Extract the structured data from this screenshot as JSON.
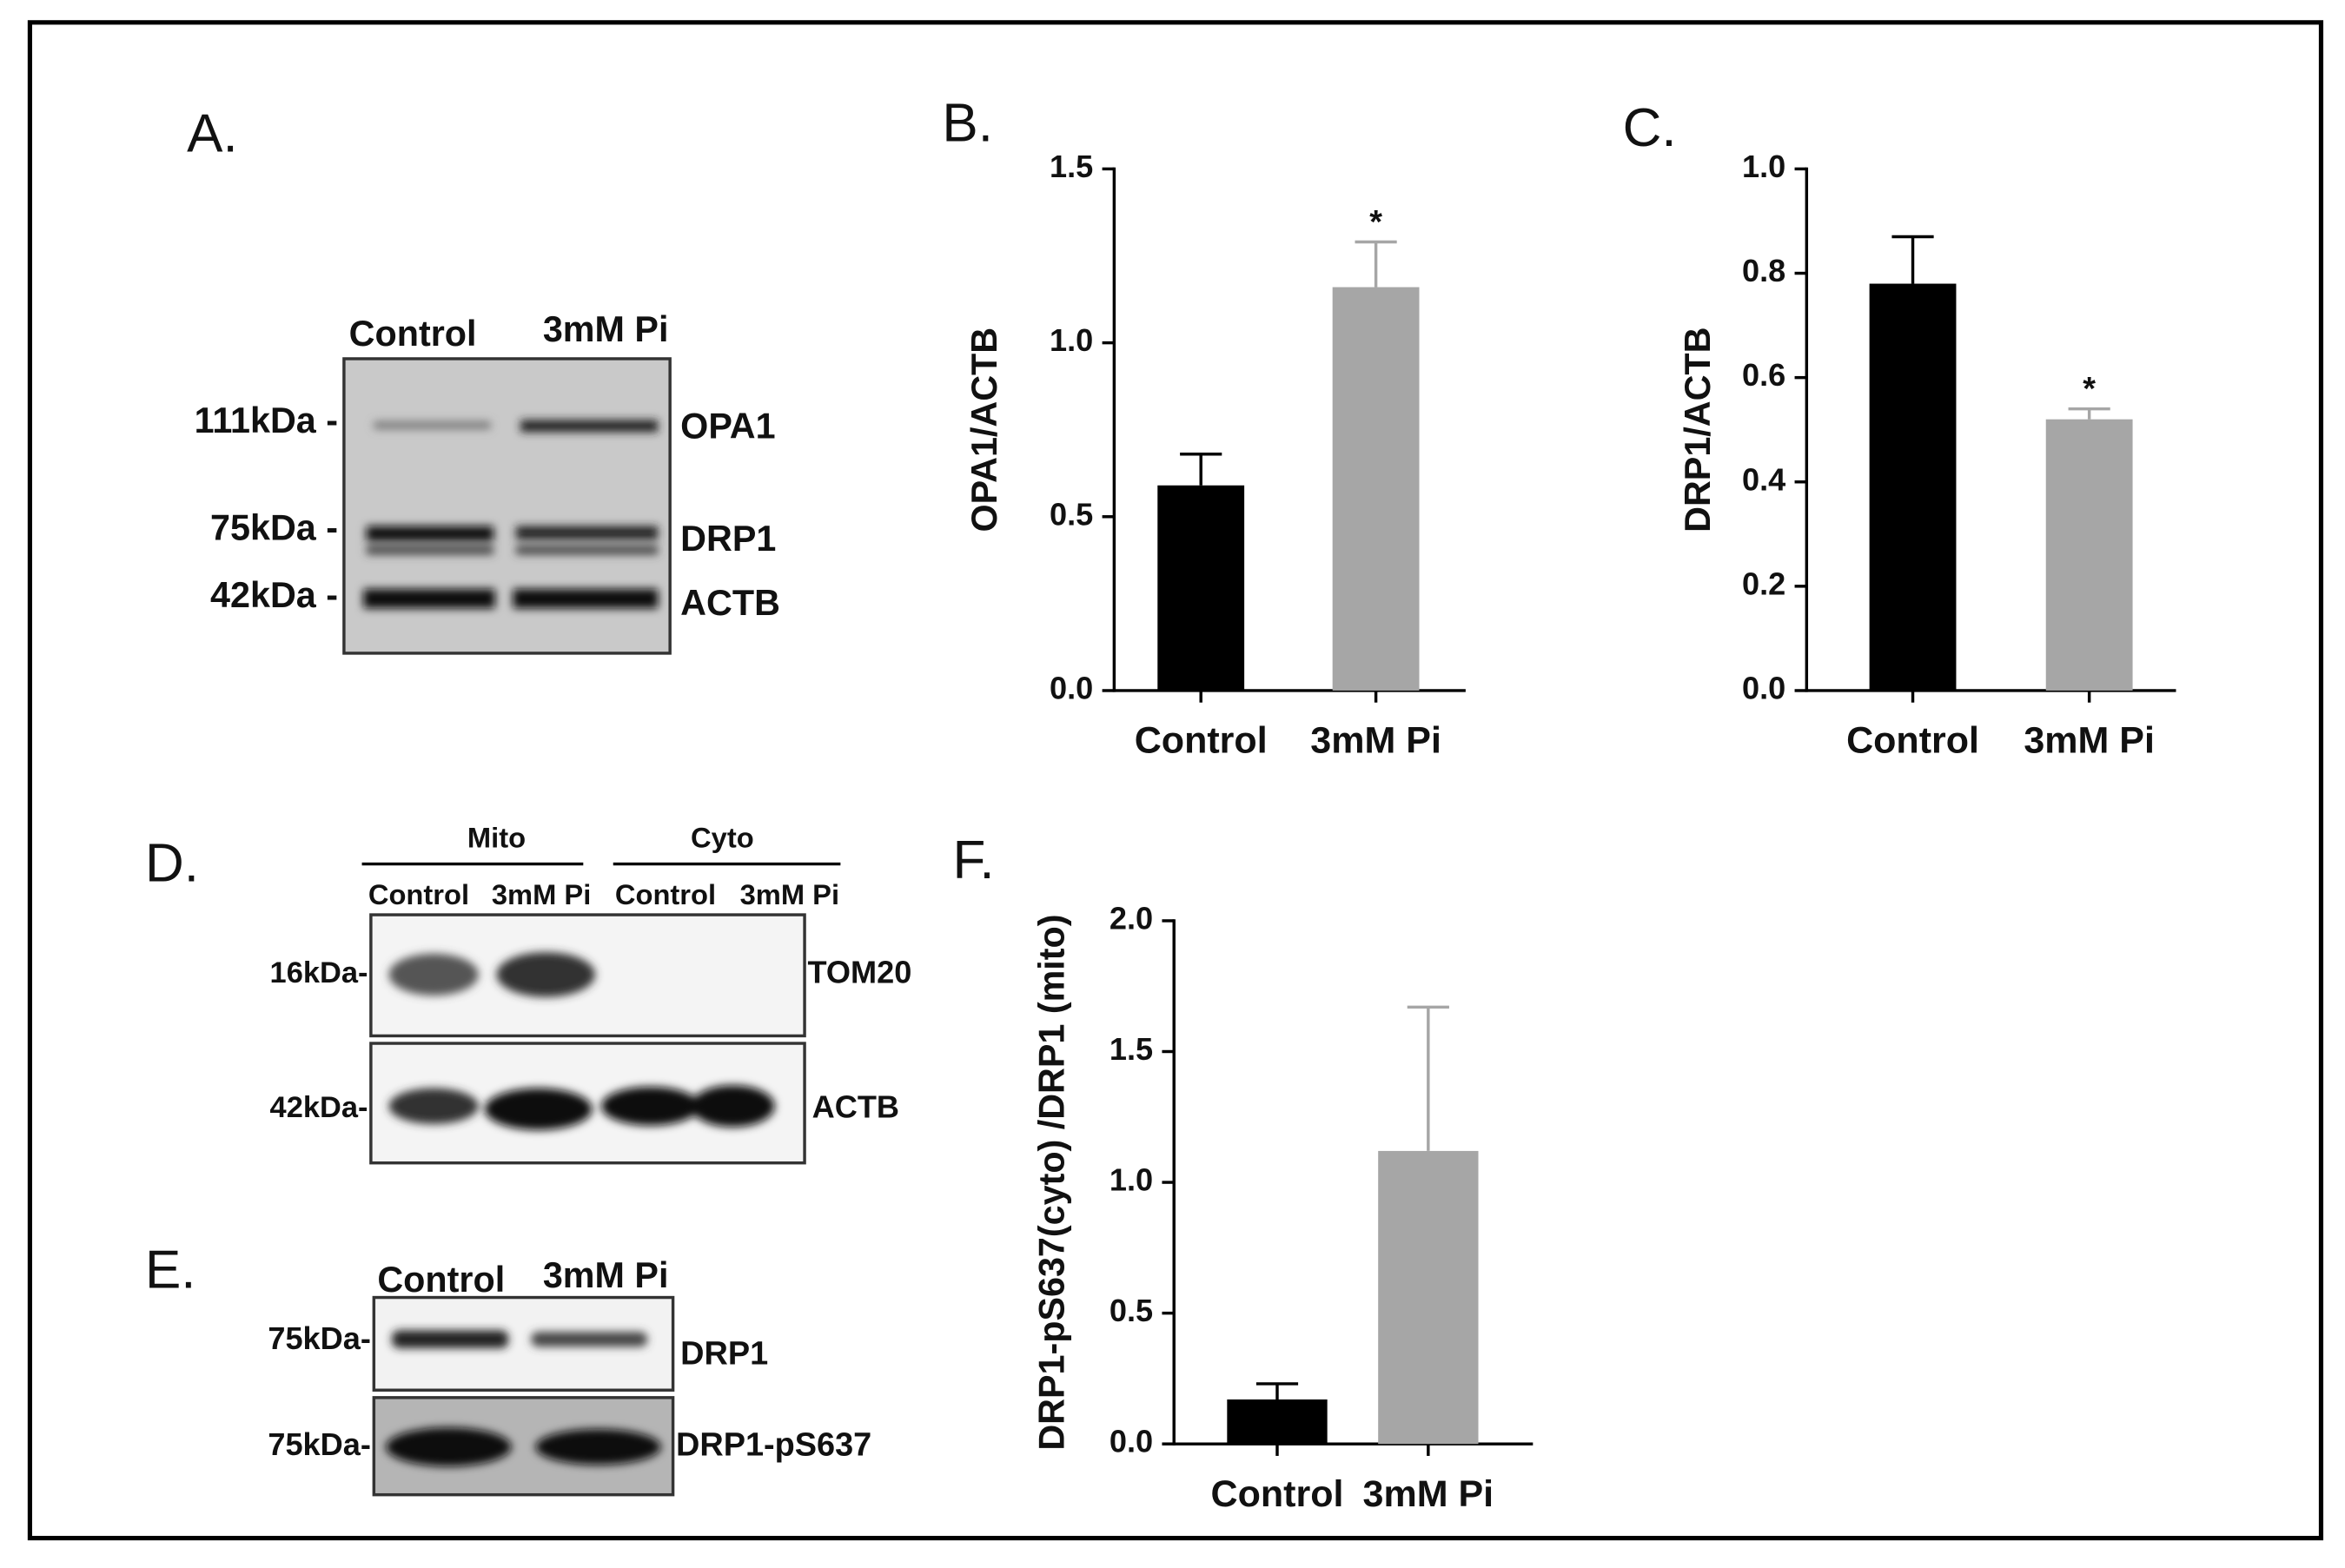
{
  "chart_data": [
    {
      "type": "bar",
      "panel_label": "B.",
      "y_label": "OPA1/ACTB",
      "categories": [
        "Control",
        "3mM Pi"
      ],
      "values": [
        0.59,
        1.16
      ],
      "errors": [
        0.09,
        0.13
      ],
      "colors": [
        "#000000",
        "#a6a6a6"
      ],
      "significance": [
        null,
        "*"
      ],
      "ylim": [
        0,
        1.5
      ],
      "yticks": [
        {
          "value": 0,
          "label": "0.0"
        },
        0.5,
        {
          "value": 1,
          "label": "1.0"
        },
        1.5
      ]
    },
    {
      "type": "bar",
      "panel_label": "C.",
      "y_label": "DRP1/ACTB",
      "categories": [
        "Control",
        "3mM Pi"
      ],
      "values": [
        0.78,
        0.52
      ],
      "errors": [
        0.09,
        0.02
      ],
      "colors": [
        "#000000",
        "#a6a6a6"
      ],
      "significance": [
        null,
        "*"
      ],
      "ylim": [
        0,
        1
      ],
      "yticks": [
        {
          "value": 0,
          "label": "0.0"
        },
        0.2,
        0.4,
        0.6,
        0.8,
        {
          "value": 1,
          "label": "1.0"
        }
      ]
    },
    {
      "type": "bar",
      "panel_label": "F.",
      "y_label": "DRP1-pS637(cyto) /DRP1 (mito)",
      "categories": [
        "Control",
        "3mM Pi"
      ],
      "values": [
        0.17,
        1.12
      ],
      "errors": [
        0.06,
        0.55
      ],
      "colors": [
        "#000000",
        "#a6a6a6"
      ],
      "significance": [
        null,
        null
      ],
      "ylim": [
        0,
        2
      ],
      "yticks": [
        {
          "value": 0,
          "label": "0.0"
        },
        0.5,
        {
          "value": 1,
          "label": "1.0"
        },
        1.5,
        {
          "value": 2,
          "label": "2.0"
        }
      ]
    }
  ],
  "blots": {
    "A": {
      "panel_label": "A.",
      "lanes": [
        "Control",
        "3mM Pi"
      ],
      "markers": [
        "111kDa -",
        "75kDa -",
        "42kDa -"
      ],
      "proteins": [
        "OPA1",
        "DRP1",
        "ACTB"
      ]
    },
    "D": {
      "panel_label": "D.",
      "groups": [
        "Mito",
        "Cyto"
      ],
      "lanes": [
        "Control",
        "3mM Pi",
        "Control",
        "3mM Pi"
      ],
      "markers": [
        "16kDa-",
        "42kDa-"
      ],
      "proteins": [
        "TOM20",
        "ACTB"
      ]
    },
    "E": {
      "panel_label": "E.",
      "lanes": [
        "Control",
        "3mM Pi"
      ],
      "markers": [
        "75kDa-",
        "75kDa-"
      ],
      "proteins": [
        "DRP1",
        "DRP1-pS637"
      ]
    }
  }
}
